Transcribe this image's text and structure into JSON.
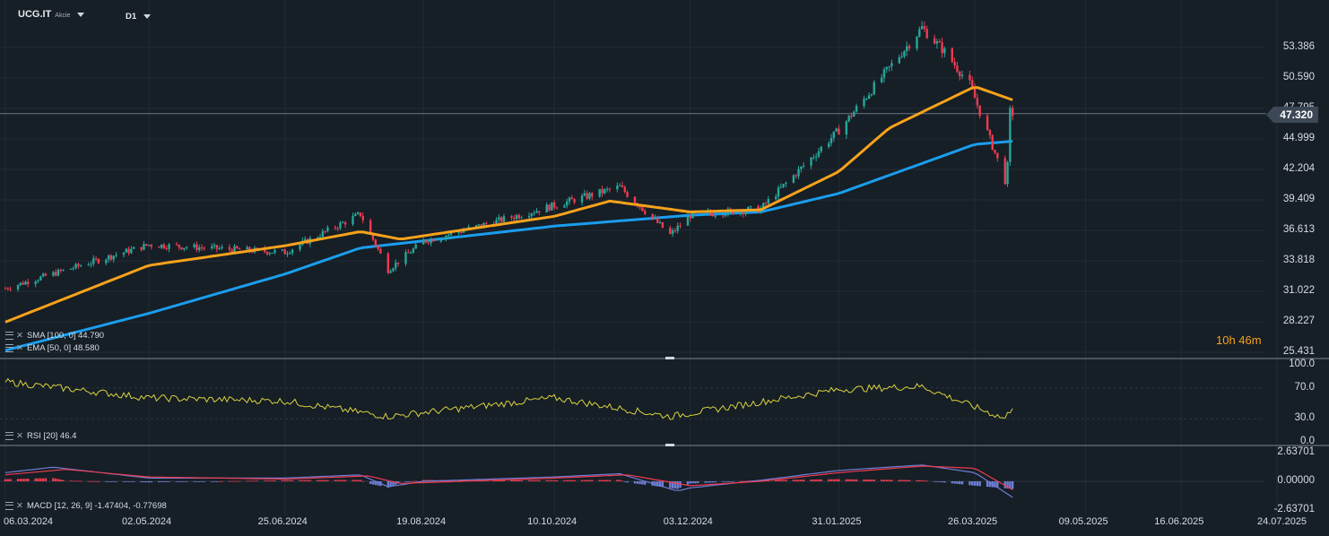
{
  "header": {
    "symbol": "UCG.IT",
    "symbol_type": "Akcie",
    "timeframe": "D1"
  },
  "colors": {
    "background": "#161e26",
    "up": "#26a69a",
    "down": "#ef3b4f",
    "sma": "#1b9ded",
    "ema": "#f7a21b",
    "rsi": "#d9d23f",
    "macd_line": "#6f7fd6",
    "signal_line": "#ef3b4f"
  },
  "price_axis": [
    "53.386",
    "50.590",
    "47.795",
    "44.999",
    "42.204",
    "39.409",
    "36.613",
    "33.818",
    "31.022",
    "28.227",
    "25.431"
  ],
  "current_price": "47.320",
  "countdown": "10h 46m",
  "indicators": {
    "sma": "SMA [100, 0] 44.790",
    "ema": "EMA [50, 0] 48.580",
    "rsi": "RSI [20] 46.4",
    "macd": "MACD [12, 26, 9] -1.47404, -0.77698"
  },
  "rsi_axis": [
    "100.0",
    "70.0",
    "30.0",
    "0.0"
  ],
  "macd_axis": [
    "2.63701",
    "0.00000",
    "-2.63701"
  ],
  "date_axis": [
    "06.03.2024",
    "02.05.2024",
    "25.06.2024",
    "19.08.2024",
    "10.10.2024",
    "03.12.2024",
    "31.01.2025",
    "26.03.2025",
    "09.05.2025",
    "16.06.2025",
    "24.07.2025"
  ],
  "chart_data": {
    "type": "candlestick",
    "symbol": "UCG.IT",
    "timeframe": "D1",
    "price_range": [
      25.431,
      56.2
    ],
    "x_dates": [
      "06.03.2024",
      "02.05.2024",
      "25.06.2024",
      "19.08.2024",
      "10.10.2024",
      "03.12.2024",
      "31.01.2025",
      "26.03.2025",
      "09.05.2025",
      "16.06.2025",
      "24.07.2025"
    ],
    "price_anchors": [
      {
        "date": "06.03.2024",
        "close": 31.3
      },
      {
        "date": "02.05.2024",
        "close": 35.3
      },
      {
        "date": "25.06.2024",
        "close": 34.6
      },
      {
        "date": "25.07.2024",
        "close": 38.1
      },
      {
        "date": "05.08.2024",
        "close": 33.0
      },
      {
        "date": "19.08.2024",
        "close": 35.6
      },
      {
        "date": "10.10.2024",
        "close": 38.9
      },
      {
        "date": "05.11.2024",
        "close": 40.6
      },
      {
        "date": "25.11.2024",
        "close": 36.2
      },
      {
        "date": "03.12.2024",
        "close": 38.0
      },
      {
        "date": "31.12.2024",
        "close": 38.6
      },
      {
        "date": "31.01.2025",
        "close": 45.8
      },
      {
        "date": "20.02.2025",
        "close": 51.5
      },
      {
        "date": "05.03.2025",
        "close": 55.2
      },
      {
        "date": "14.03.2025",
        "close": 53.0
      },
      {
        "date": "24.03.2025",
        "close": 50.0
      },
      {
        "date": "07.04.2025",
        "close": 41.2
      },
      {
        "date": "08.04.2025",
        "close": 42.5
      },
      {
        "date": "09.04.2025",
        "close": 47.5
      },
      {
        "date": "10.04.2025",
        "close": 47.32
      }
    ],
    "sma_anchors": [
      {
        "date": "06.03.2024",
        "value": 25.6
      },
      {
        "date": "02.05.2024",
        "value": 29.0
      },
      {
        "date": "25.06.2024",
        "value": 32.6
      },
      {
        "date": "25.07.2024",
        "value": 35.0
      },
      {
        "date": "10.10.2024",
        "value": 37.0
      },
      {
        "date": "03.12.2024",
        "value": 38.0
      },
      {
        "date": "31.12.2024",
        "value": 38.3
      },
      {
        "date": "31.01.2025",
        "value": 40.0
      },
      {
        "date": "26.03.2025",
        "value": 44.5
      },
      {
        "date": "10.04.2025",
        "value": 44.79
      }
    ],
    "ema_anchors": [
      {
        "date": "06.03.2024",
        "value": 28.2
      },
      {
        "date": "02.05.2024",
        "value": 33.4
      },
      {
        "date": "25.06.2024",
        "value": 35.2
      },
      {
        "date": "25.07.2024",
        "value": 36.5
      },
      {
        "date": "10.08.2024",
        "value": 35.8
      },
      {
        "date": "10.10.2024",
        "value": 37.9
      },
      {
        "date": "01.11.2024",
        "value": 39.3
      },
      {
        "date": "03.12.2024",
        "value": 38.3
      },
      {
        "date": "31.12.2024",
        "value": 38.5
      },
      {
        "date": "31.01.2025",
        "value": 42.0
      },
      {
        "date": "20.02.2025",
        "value": 46.0
      },
      {
        "date": "26.03.2025",
        "value": 49.8
      },
      {
        "date": "10.04.2025",
        "value": 48.58
      }
    ],
    "rsi": {
      "period": 20,
      "last": 46.4,
      "ylim": [
        0,
        100
      ],
      "levels": [
        70,
        30
      ],
      "anchors": [
        {
          "date": "06.03.2024",
          "value": 78
        },
        {
          "date": "02.05.2024",
          "value": 57
        },
        {
          "date": "25.06.2024",
          "value": 53
        },
        {
          "date": "05.08.2024",
          "value": 33
        },
        {
          "date": "10.10.2024",
          "value": 57
        },
        {
          "date": "25.11.2024",
          "value": 33
        },
        {
          "date": "31.01.2025",
          "value": 68
        },
        {
          "date": "05.03.2025",
          "value": 72
        },
        {
          "date": "07.04.2025",
          "value": 30
        },
        {
          "date": "10.04.2025",
          "value": 46.4
        }
      ]
    },
    "macd": {
      "params": [
        12,
        26,
        9
      ],
      "macd": -1.47404,
      "signal": -0.77698,
      "ylim": [
        -2.63701,
        2.63701
      ],
      "macd_anchors": [
        {
          "date": "06.03.2024",
          "value": 0.8
        },
        {
          "date": "25.03.2024",
          "value": 1.3
        },
        {
          "date": "02.05.2024",
          "value": 0.3
        },
        {
          "date": "25.06.2024",
          "value": 0.3
        },
        {
          "date": "25.07.2024",
          "value": 0.6
        },
        {
          "date": "05.08.2024",
          "value": -0.5
        },
        {
          "date": "19.08.2024",
          "value": 0.0
        },
        {
          "date": "10.10.2024",
          "value": 0.4
        },
        {
          "date": "05.11.2024",
          "value": 0.7
        },
        {
          "date": "28.11.2024",
          "value": -0.9
        },
        {
          "date": "03.12.2024",
          "value": -0.6
        },
        {
          "date": "31.12.2024",
          "value": 0.1
        },
        {
          "date": "31.01.2025",
          "value": 1.0
        },
        {
          "date": "05.03.2025",
          "value": 1.5
        },
        {
          "date": "26.03.2025",
          "value": 0.8
        },
        {
          "date": "10.04.2025",
          "value": -1.47404
        }
      ],
      "signal_anchors": [
        {
          "date": "06.03.2024",
          "value": 0.6
        },
        {
          "date": "30.03.2024",
          "value": 1.1
        },
        {
          "date": "02.05.2024",
          "value": 0.4
        },
        {
          "date": "25.06.2024",
          "value": 0.2
        },
        {
          "date": "28.07.2024",
          "value": 0.5
        },
        {
          "date": "10.08.2024",
          "value": -0.2
        },
        {
          "date": "10.10.2024",
          "value": 0.3
        },
        {
          "date": "08.11.2024",
          "value": 0.6
        },
        {
          "date": "03.12.2024",
          "value": -0.4
        },
        {
          "date": "31.12.2024",
          "value": 0.0
        },
        {
          "date": "31.01.2025",
          "value": 0.8
        },
        {
          "date": "05.03.2025",
          "value": 1.4
        },
        {
          "date": "26.03.2025",
          "value": 1.2
        },
        {
          "date": "10.04.2025",
          "value": -0.77698
        }
      ]
    }
  }
}
